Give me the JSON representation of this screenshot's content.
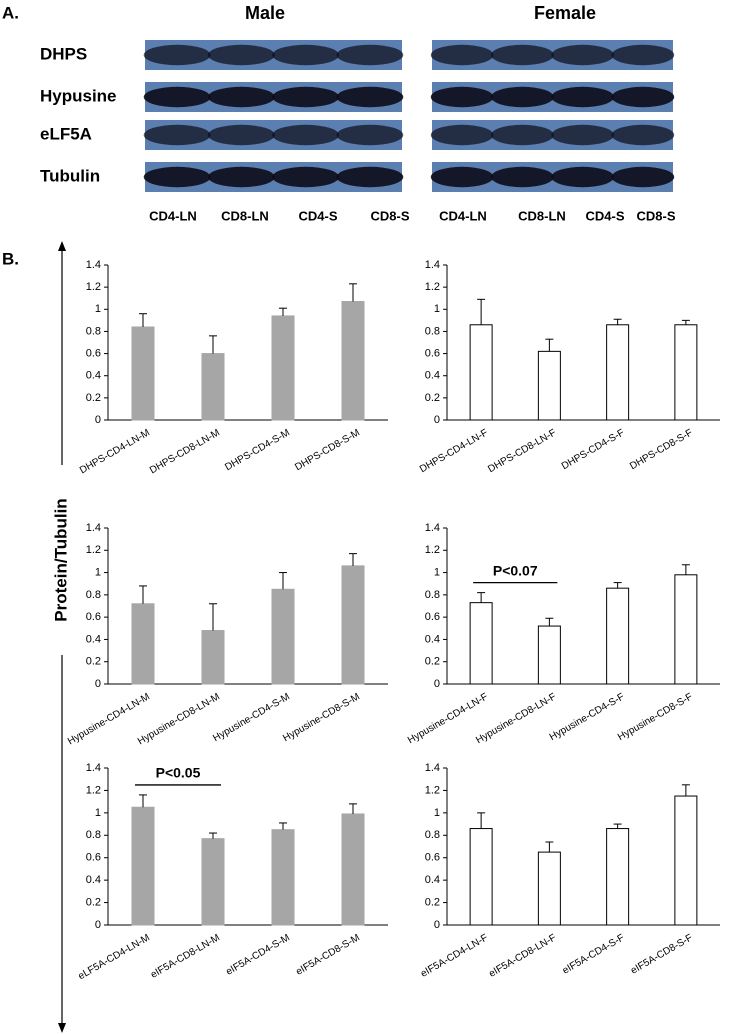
{
  "panel_a": {
    "label": "A.",
    "male_title": "Male",
    "female_title": "Female",
    "rows": [
      "DHPS",
      "Hypusine",
      "eLF5A",
      "Tubulin"
    ],
    "male_lanes": [
      "CD4-LN",
      "CD8-LN",
      "CD4-S",
      "CD8-S"
    ],
    "female_lanes": [
      "CD4-LN",
      "CD8-LN",
      "CD4-S",
      "CD8-S"
    ]
  },
  "panel_b_label": "B.",
  "shared_y_label": "Protein/Tubulin",
  "chart_data": [
    {
      "type": "bar",
      "categories": [
        "DHPS-CD4-LN-M",
        "DHPS-CD8-LN-M",
        "DHPS-CD4-S-M",
        "DHPS-CD8-S-M"
      ],
      "values": [
        0.84,
        0.6,
        0.94,
        1.07
      ],
      "errors": [
        0.12,
        0.16,
        0.07,
        0.16
      ],
      "color": "#a6a6a6",
      "edgecolor": "#a6a6a6",
      "ylim": [
        0,
        1.4
      ],
      "yticks": [
        0,
        0.2,
        0.4,
        0.6,
        0.8,
        1,
        1.2,
        1.4
      ]
    },
    {
      "type": "bar",
      "categories": [
        "DHPS-CD4-LN-F",
        "DHPS-CD8-LN-F",
        "DHPS-CD4-S-F",
        "DHPS-CD8-S-F"
      ],
      "values": [
        0.86,
        0.62,
        0.86,
        0.86
      ],
      "errors": [
        0.23,
        0.11,
        0.05,
        0.04
      ],
      "color": "#ffffff",
      "edgecolor": "#000000",
      "ylim": [
        0,
        1.4
      ],
      "yticks": [
        0,
        0.2,
        0.4,
        0.6,
        0.8,
        1,
        1.2,
        1.4
      ]
    },
    {
      "type": "bar",
      "categories": [
        "Hypusine-CD4-LN-M",
        "Hypusine-CD8-LN-M",
        "Hypusine-CD4-S-M",
        "Hypusine-CD8-S-M"
      ],
      "values": [
        0.72,
        0.48,
        0.85,
        1.06
      ],
      "errors": [
        0.16,
        0.24,
        0.15,
        0.11
      ],
      "color": "#a6a6a6",
      "edgecolor": "#a6a6a6",
      "ylim": [
        0,
        1.4
      ],
      "yticks": [
        0,
        0.2,
        0.4,
        0.6,
        0.8,
        1,
        1.2,
        1.4
      ]
    },
    {
      "type": "bar",
      "categories": [
        "Hypusine-CD4-LN-F",
        "Hypusine-CD8-LN-F",
        "Hypusine-CD4-S-F",
        "Hypusine-CD8-S-F"
      ],
      "values": [
        0.73,
        0.52,
        0.86,
        0.98
      ],
      "errors": [
        0.09,
        0.07,
        0.05,
        0.09
      ],
      "color": "#ffffff",
      "edgecolor": "#000000",
      "ylim": [
        0,
        1.4
      ],
      "yticks": [
        0,
        0.2,
        0.4,
        0.6,
        0.8,
        1,
        1.2,
        1.4
      ],
      "annotation": "P<0.07"
    },
    {
      "type": "bar",
      "categories": [
        "eLF5A-CD4-LN-M",
        "eIF5A-CD8-LN-M",
        "eIF5A-CD4-S-M",
        "eIF5A-CD8-S-M"
      ],
      "values": [
        1.05,
        0.77,
        0.85,
        0.99
      ],
      "errors": [
        0.11,
        0.05,
        0.06,
        0.09
      ],
      "color": "#a6a6a6",
      "edgecolor": "#a6a6a6",
      "ylim": [
        0,
        1.4
      ],
      "yticks": [
        0,
        0.2,
        0.4,
        0.6,
        0.8,
        1,
        1.2,
        1.4
      ],
      "annotation": "P<0.05"
    },
    {
      "type": "bar",
      "categories": [
        "eIF5A-CD4-LN-F",
        "eIF5A-CD8-LN-F",
        "eIF5A-CD4-S-F",
        "eIF5A-CD8-S-F"
      ],
      "values": [
        0.86,
        0.65,
        0.86,
        1.15
      ],
      "errors": [
        0.14,
        0.09,
        0.04,
        0.1
      ],
      "color": "#ffffff",
      "edgecolor": "#000000",
      "ylim": [
        0,
        1.4
      ],
      "yticks": [
        0,
        0.2,
        0.4,
        0.6,
        0.8,
        1,
        1.2,
        1.4
      ]
    }
  ]
}
